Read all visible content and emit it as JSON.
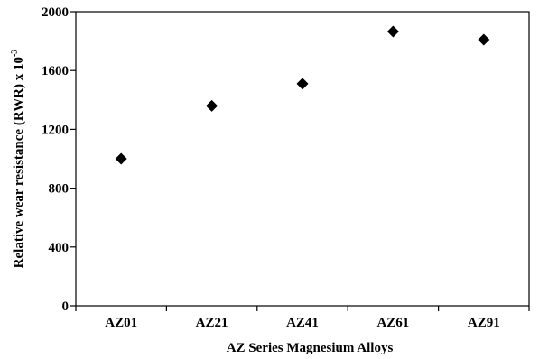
{
  "chart_data": {
    "type": "scatter",
    "categories": [
      "AZ01",
      "AZ21",
      "AZ41",
      "AZ61",
      "AZ91"
    ],
    "values": [
      1000,
      1360,
      1510,
      1865,
      1810
    ],
    "xlabel": "AZ Series Magnesium Alloys",
    "ylabel": "Relative wear resistance (RWR)  x 10",
    "ylabel_exponent": "-3",
    "ylim": [
      0,
      2000
    ],
    "yticks": [
      0,
      400,
      800,
      1200,
      1600,
      2000
    ],
    "grid": false,
    "marker": "diamond",
    "marker_color": "#000000"
  }
}
